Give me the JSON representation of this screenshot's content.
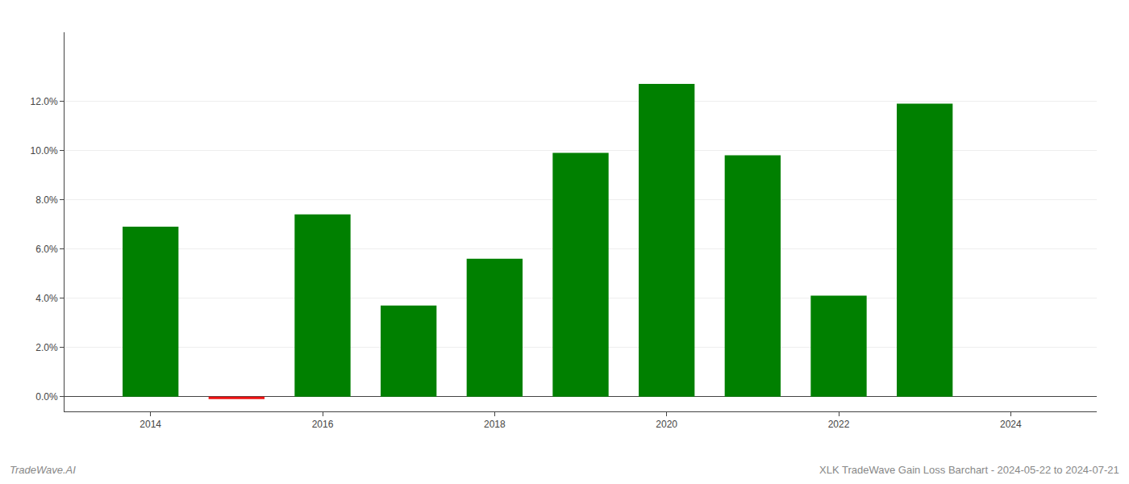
{
  "chart_data": {
    "type": "bar",
    "x": [
      2014,
      2015,
      2016,
      2017,
      2018,
      2019,
      2020,
      2021,
      2022,
      2023
    ],
    "values": [
      0.069,
      -0.001,
      0.074,
      0.037,
      0.056,
      0.099,
      0.127,
      0.098,
      0.041,
      0.119
    ],
    "colors": [
      "#008000",
      "#ee1111",
      "#008000",
      "#008000",
      "#008000",
      "#008000",
      "#008000",
      "#008000",
      "#008000",
      "#008000"
    ],
    "xlim": [
      2013.0,
      2025.0
    ],
    "xticks": [
      2014,
      2016,
      2018,
      2020,
      2022,
      2024
    ],
    "ylim": [
      -0.006,
      0.148
    ],
    "yticks": [
      {
        "value": 0.0,
        "label": "0.0%"
      },
      {
        "value": 0.02,
        "label": "2.0%"
      },
      {
        "value": 0.04,
        "label": "4.0%"
      },
      {
        "value": 0.06,
        "label": "6.0%"
      },
      {
        "value": 0.08,
        "label": "8.0%"
      },
      {
        "value": 0.1,
        "label": "10.0%"
      },
      {
        "value": 0.12,
        "label": "12.0%"
      }
    ],
    "grid": true,
    "annotations": [
      "TradeWave.AI",
      "XLK TradeWave Gain Loss Barchart - 2024-05-22 to 2024-07-21"
    ]
  }
}
